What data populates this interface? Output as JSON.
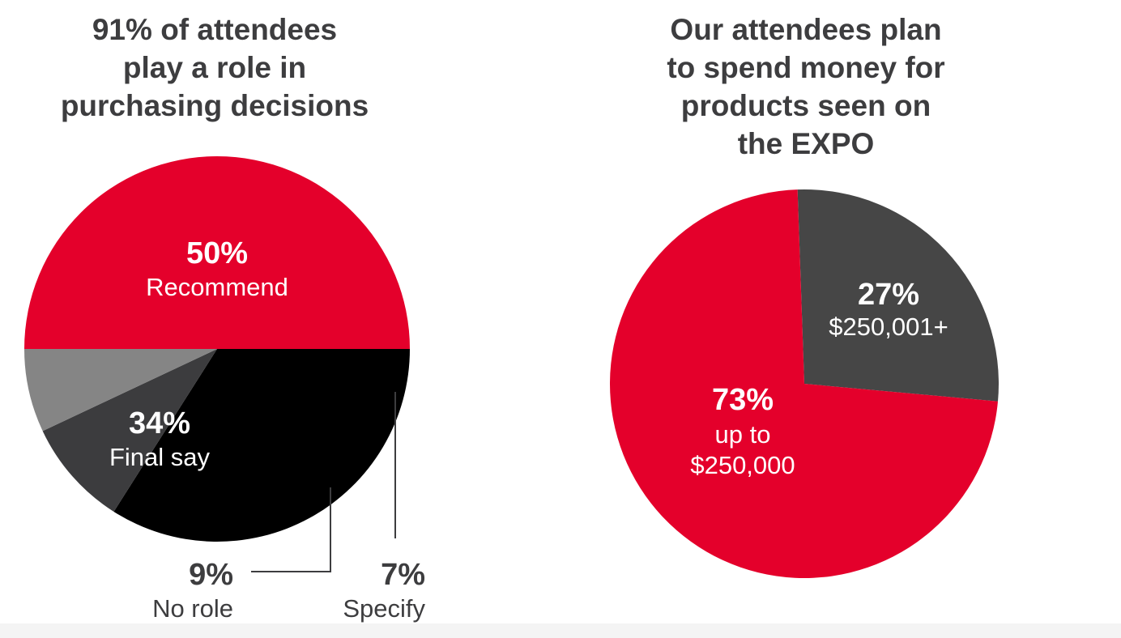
{
  "chart_data": [
    {
      "type": "pie",
      "title": "91% of attendees\nplay a role in\npurchasing decisions",
      "slices": [
        {
          "percent_label": "50%",
          "label": "Recommend",
          "value": 50,
          "color": "#e4002b",
          "text_color": "#ffffff"
        },
        {
          "percent_label": "34%",
          "label": "Final say",
          "value": 34,
          "color": "#000000",
          "text_color": "#ffffff"
        },
        {
          "percent_label": "9%",
          "label": "No role",
          "value": 9,
          "color": "#3c3c3e",
          "text_color": "#3d3d3f"
        },
        {
          "percent_label": "7%",
          "label": "Specify",
          "value": 7,
          "color": "#858585",
          "text_color": "#3d3d3f"
        }
      ]
    },
    {
      "type": "pie",
      "title": "Our attendees plan\nto spend money for\nproducts seen on\nthe EXPO",
      "slices": [
        {
          "percent_label": "27%",
          "label": "$250,001+",
          "value": 27,
          "color": "#464646",
          "text_color": "#ffffff"
        },
        {
          "percent_label": "73%",
          "label": "up to\n$250,000",
          "value": 73,
          "color": "#e4002b",
          "text_color": "#ffffff"
        }
      ]
    }
  ]
}
